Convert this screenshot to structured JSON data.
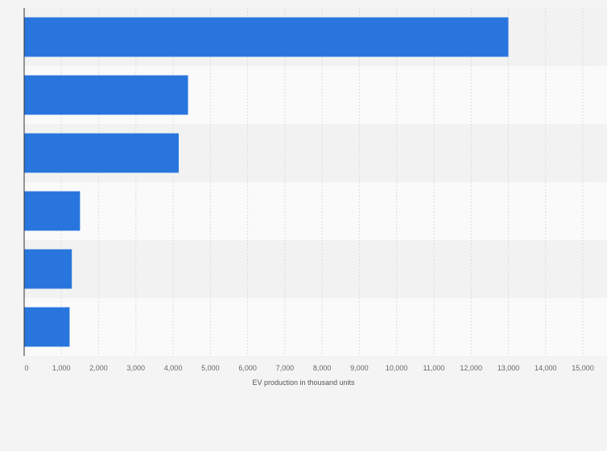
{
  "chart_data": {
    "type": "bar",
    "orientation": "horizontal",
    "categories": [
      "",
      "",
      "",
      "",
      "",
      ""
    ],
    "values": [
      13000,
      4400,
      4150,
      1500,
      1280,
      1220
    ],
    "xlabel": "EV production in thousand units",
    "ylabel": "",
    "xlim": [
      0,
      15000
    ],
    "xticks": [
      0,
      1000,
      2000,
      3000,
      4000,
      5000,
      6000,
      7000,
      8000,
      9000,
      10000,
      11000,
      12000,
      13000,
      14000,
      15000
    ],
    "xtick_labels": [
      "0",
      "1,000",
      "2,000",
      "3,000",
      "4,000",
      "5,000",
      "6,000",
      "7,000",
      "8,000",
      "9,000",
      "10,000",
      "11,000",
      "12,000",
      "13,000",
      "14,000",
      "15,000"
    ],
    "grid": true,
    "legend": "none",
    "colors": {
      "bar": "#2876dd",
      "band_dark": "#f2f2f2",
      "band_light": "#fafafa",
      "grid": "#dcdcdc",
      "axis": "#333333"
    }
  }
}
